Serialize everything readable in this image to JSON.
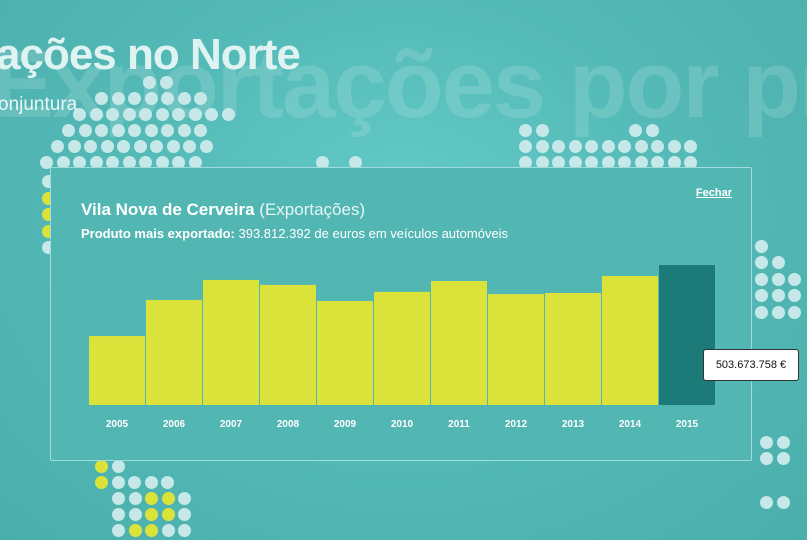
{
  "header": {
    "title": "ações no Norte",
    "subtitle": "onjuntura",
    "background_word": "Exportações por produto"
  },
  "panel": {
    "municipality": "Vila Nova de Cerveira",
    "type": "(Exportações)",
    "top_label": "Produto mais exportado:",
    "top_value": "393.812.392",
    "top_desc": "de euros em veículos automóveis",
    "close_label": "Fechar"
  },
  "tooltip": {
    "value": "503.673.758 €"
  },
  "colors": {
    "bar": "#dbe33b",
    "highlight": "#1c7b79"
  },
  "chart_data": {
    "type": "bar",
    "categories": [
      "2005",
      "2006",
      "2007",
      "2008",
      "2009",
      "2010",
      "2011",
      "2012",
      "2013",
      "2014",
      "2015"
    ],
    "values": [
      248000000,
      378000000,
      450000000,
      432000000,
      374000000,
      407000000,
      446000000,
      399000000,
      403000000,
      464000000,
      503673758
    ],
    "highlight_index": 10,
    "ylim": [
      0,
      503673758
    ],
    "xlabel": "",
    "ylabel": "",
    "grid": false
  }
}
